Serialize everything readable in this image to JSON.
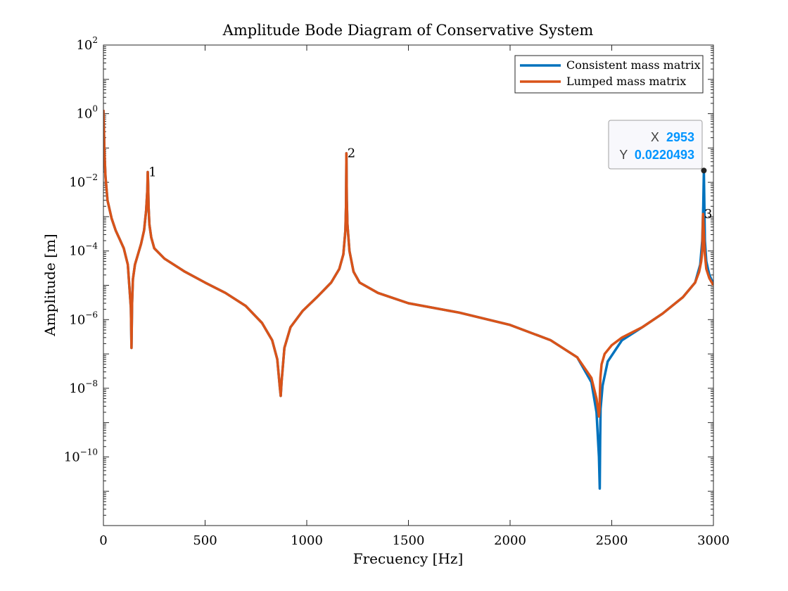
{
  "chart_data": {
    "type": "line",
    "title": "Amplitude Bode Diagram of Conservative System",
    "xlabel": "Frecuency [Hz]",
    "ylabel": "Amplitude [m]",
    "xlim": [
      0,
      3000
    ],
    "ylim": [
      1e-12,
      100.0
    ],
    "yscale": "log",
    "grid": false,
    "legend_position": "top-right",
    "x_ticks": [
      {
        "value": 0,
        "label": "0"
      },
      {
        "value": 500,
        "label": "500"
      },
      {
        "value": 1000,
        "label": "1000"
      },
      {
        "value": 1500,
        "label": "1500"
      },
      {
        "value": 2000,
        "label": "2000"
      },
      {
        "value": 2500,
        "label": "2500"
      },
      {
        "value": 3000,
        "label": "3000"
      }
    ],
    "y_ticks": [
      {
        "value": 100.0,
        "base": "10",
        "exp": "2"
      },
      {
        "value": 1.0,
        "base": "10",
        "exp": "0"
      },
      {
        "value": 0.01,
        "base": "10",
        "exp": "−2"
      },
      {
        "value": 0.0001,
        "base": "10",
        "exp": "−4"
      },
      {
        "value": 1e-06,
        "base": "10",
        "exp": "−6"
      },
      {
        "value": 1e-08,
        "base": "10",
        "exp": "−8"
      },
      {
        "value": 1e-10,
        "base": "10",
        "exp": "−10"
      }
    ],
    "series": [
      {
        "name": "Consistent mass matrix",
        "color": "#0072BD",
        "x": [
          0,
          5,
          10,
          20,
          40,
          60,
          80,
          100,
          120,
          135,
          138,
          141,
          145,
          155,
          170,
          185,
          200,
          210,
          216,
          218,
          220,
          222,
          226,
          235,
          250,
          300,
          400,
          500,
          600,
          700,
          780,
          830,
          855,
          868,
          872,
          876,
          890,
          920,
          980,
          1050,
          1120,
          1160,
          1180,
          1190,
          1193,
          1195,
          1197,
          1200,
          1210,
          1230,
          1260,
          1350,
          1500,
          1750,
          2000,
          2200,
          2330,
          2400,
          2425,
          2437,
          2441,
          2443,
          2445,
          2455,
          2480,
          2550,
          2650,
          2750,
          2850,
          2910,
          2935,
          2945,
          2950,
          2953,
          2958,
          2965,
          2980,
          3000
        ],
        "y": [
          1.2,
          0.08,
          0.015,
          0.003,
          0.0009,
          0.0004,
          0.00022,
          0.00012,
          4e-05,
          2.2e-06,
          1.5e-07,
          3e-06,
          1.5e-05,
          4e-05,
          8e-05,
          0.00016,
          0.0004,
          0.0015,
          0.006,
          0.02,
          0.008,
          0.002,
          0.0006,
          0.00025,
          0.00012,
          6e-05,
          2.5e-05,
          1.2e-05,
          6e-06,
          2.5e-06,
          8e-07,
          2.5e-07,
          7e-08,
          1e-08,
          6e-09,
          1.5e-08,
          1.5e-07,
          6e-07,
          1.8e-06,
          4.5e-06,
          1.2e-05,
          3e-05,
          8e-05,
          0.0004,
          0.002,
          0.07,
          0.003,
          0.0006,
          0.0001,
          2.5e-05,
          1.2e-05,
          6e-06,
          3e-06,
          1.6e-06,
          7e-07,
          2.5e-07,
          8e-08,
          1.5e-08,
          2e-09,
          1e-10,
          1.2e-11,
          3e-10,
          2.5e-09,
          1.2e-08,
          6e-08,
          2.5e-07,
          6e-07,
          1.5e-06,
          4.5e-06,
          1.2e-05,
          4e-05,
          0.0002,
          0.002,
          0.0220493,
          0.0002,
          5e-05,
          2e-05,
          1.1e-05
        ]
      },
      {
        "name": "Lumped mass matrix",
        "color": "#D95319",
        "x": [
          0,
          5,
          10,
          20,
          40,
          60,
          80,
          100,
          120,
          135,
          138,
          141,
          145,
          155,
          170,
          185,
          200,
          210,
          216,
          218,
          220,
          222,
          226,
          235,
          250,
          300,
          400,
          500,
          600,
          700,
          780,
          830,
          855,
          868,
          872,
          876,
          890,
          920,
          980,
          1050,
          1120,
          1160,
          1180,
          1190,
          1193,
          1195,
          1197,
          1200,
          1210,
          1230,
          1260,
          1350,
          1500,
          1750,
          2000,
          2200,
          2330,
          2400,
          2425,
          2437,
          2440,
          2442,
          2444,
          2450,
          2465,
          2500,
          2550,
          2650,
          2750,
          2850,
          2910,
          2930,
          2940,
          2945,
          2947,
          2949,
          2953,
          2958,
          2965,
          2980,
          3000
        ],
        "y": [
          1.3,
          0.08,
          0.015,
          0.003,
          0.0009,
          0.0004,
          0.00022,
          0.00012,
          4e-05,
          2.2e-06,
          1.5e-07,
          3e-06,
          1.5e-05,
          4e-05,
          8e-05,
          0.00016,
          0.0004,
          0.0015,
          0.006,
          0.02,
          0.008,
          0.002,
          0.0006,
          0.00025,
          0.00012,
          6e-05,
          2.5e-05,
          1.2e-05,
          6e-06,
          2.5e-06,
          8e-07,
          2.5e-07,
          7e-08,
          1e-08,
          6e-09,
          1.5e-08,
          1.5e-07,
          6e-07,
          1.8e-06,
          4.5e-06,
          1.2e-05,
          3e-05,
          8e-05,
          0.0004,
          0.002,
          0.07,
          0.003,
          0.0006,
          0.0001,
          2.5e-05,
          1.2e-05,
          6e-06,
          3e-06,
          1.6e-06,
          7e-07,
          2.5e-07,
          8e-08,
          2e-08,
          5e-09,
          1.5e-09,
          2.5e-09,
          8e-09,
          2e-08,
          5e-08,
          1e-07,
          1.8e-07,
          3e-07,
          6e-07,
          1.5e-06,
          4.5e-06,
          1.2e-05,
          2.5e-05,
          5e-05,
          0.0001,
          0.0004,
          0.0012,
          0.0003,
          8e-05,
          3e-05,
          1.6e-05,
          1e-05
        ]
      }
    ],
    "annotations": [
      {
        "text": "1",
        "x": 222,
        "y": 0.018
      },
      {
        "text": "2",
        "x": 1200,
        "y": 0.065
      },
      {
        "text": "3",
        "x": 2955,
        "y": 0.0011
      }
    ],
    "datatip": {
      "x_label": "X",
      "x_value": "2953",
      "y_label": "Y",
      "y_value": "0.0220493",
      "point_x": 2953,
      "point_y": 0.0220493
    }
  }
}
